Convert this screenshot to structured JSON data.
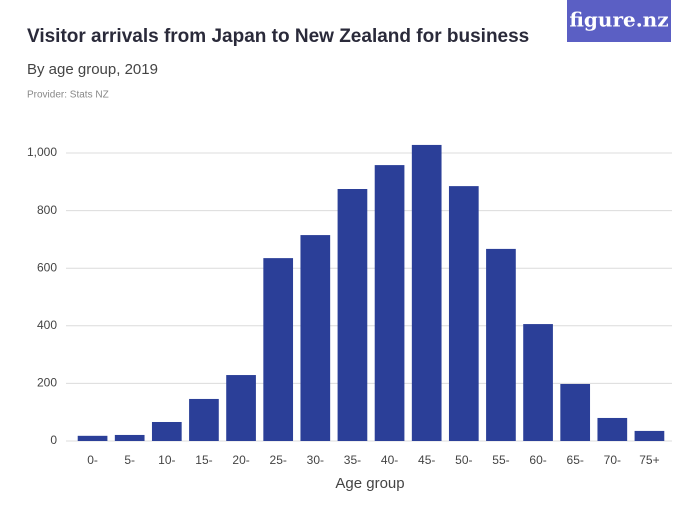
{
  "logo": "figure.nz",
  "chart_data": {
    "type": "bar",
    "title": "Visitor arrivals from Japan to New Zealand for business",
    "subtitle": "By age group, 2019",
    "provider": "Provider: Stats NZ",
    "x_label": "Age group",
    "categories": [
      "0-",
      "5-",
      "10-",
      "15-",
      "20-",
      "25-",
      "30-",
      "35-",
      "40-",
      "45-",
      "50-",
      "55-",
      "60-",
      "65-",
      "70-",
      "75+"
    ],
    "values": [
      18,
      21,
      66,
      146,
      229,
      635,
      715,
      875,
      958,
      1028,
      885,
      667,
      406,
      198,
      80,
      35
    ],
    "color": "#2b3f98",
    "ylim": [
      0,
      1000
    ],
    "yticks": [
      0,
      200,
      400,
      600,
      800,
      {
        "value": 1000,
        "label": "1,000"
      }
    ],
    "grid": true
  }
}
